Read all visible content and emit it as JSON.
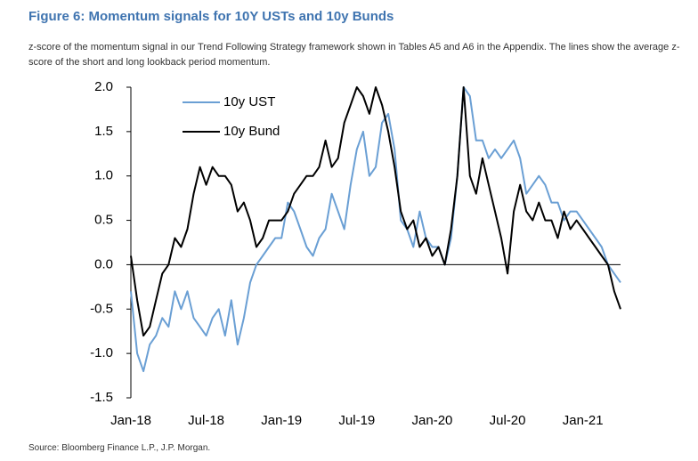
{
  "chart_data": {
    "type": "line",
    "title": "Figure 6: Momentum signals for 10Y USTs and 10y Bunds",
    "subtitle": "z-score of the momentum signal in our Trend Following Strategy framework shown in Tables A5 and A6 in the Appendix. The lines show the average z-score of the short and long lookback period momentum.",
    "source": "Source: Bloomberg Finance L.P., J.P. Morgan.",
    "categories": [
      "Jan-18",
      null,
      null,
      null,
      null,
      null,
      null,
      null,
      null,
      null,
      null,
      null,
      "Jul-18",
      null,
      null,
      null,
      null,
      null,
      null,
      null,
      null,
      null,
      null,
      null,
      "Jan-19",
      null,
      null,
      null,
      null,
      null,
      null,
      null,
      null,
      null,
      null,
      null,
      "Jul-19",
      null,
      null,
      null,
      null,
      null,
      null,
      null,
      null,
      null,
      null,
      null,
      "Jan-20",
      null,
      null,
      null,
      null,
      null,
      null,
      null,
      null,
      null,
      null,
      null,
      "Jul-20",
      null,
      null,
      null,
      null,
      null,
      null,
      null,
      null,
      null,
      null,
      null,
      "Jan-21",
      null,
      null,
      null,
      null,
      null,
      null
    ],
    "series": [
      {
        "name": "10y UST",
        "color": "#6a9fd4",
        "values": [
          -0.3,
          -1.0,
          -1.2,
          -0.9,
          -0.8,
          -0.6,
          -0.7,
          -0.3,
          -0.5,
          -0.3,
          -0.6,
          -0.7,
          -0.8,
          -0.6,
          -0.5,
          -0.8,
          -0.4,
          -0.9,
          -0.6,
          -0.2,
          0.0,
          0.1,
          0.2,
          0.3,
          0.3,
          0.7,
          0.6,
          0.4,
          0.2,
          0.1,
          0.3,
          0.4,
          0.8,
          0.6,
          0.4,
          0.9,
          1.3,
          1.5,
          1.0,
          1.1,
          1.6,
          1.7,
          1.3,
          0.5,
          0.4,
          0.2,
          0.6,
          0.3,
          0.2,
          0.2,
          0.0,
          0.3,
          1.0,
          2.0,
          1.9,
          1.4,
          1.4,
          1.2,
          1.3,
          1.2,
          1.3,
          1.4,
          1.2,
          0.8,
          0.9,
          1.0,
          0.9,
          0.7,
          0.7,
          0.5,
          0.6,
          0.6,
          0.5,
          0.4,
          0.3,
          0.2,
          0.0,
          -0.1,
          -0.2
        ]
      },
      {
        "name": "10y Bund",
        "color": "#000000",
        "values": [
          0.1,
          -0.4,
          -0.8,
          -0.7,
          -0.4,
          -0.1,
          0.0,
          0.3,
          0.2,
          0.4,
          0.8,
          1.1,
          0.9,
          1.1,
          1.0,
          1.0,
          0.9,
          0.6,
          0.7,
          0.5,
          0.2,
          0.3,
          0.5,
          0.5,
          0.5,
          0.6,
          0.8,
          0.9,
          1.0,
          1.0,
          1.1,
          1.4,
          1.1,
          1.2,
          1.6,
          1.8,
          2.0,
          1.9,
          1.7,
          2.0,
          1.8,
          1.5,
          1.1,
          0.6,
          0.4,
          0.5,
          0.2,
          0.3,
          0.1,
          0.2,
          0.0,
          0.4,
          1.0,
          2.0,
          1.0,
          0.8,
          1.2,
          0.9,
          0.6,
          0.3,
          -0.1,
          0.6,
          0.9,
          0.6,
          0.5,
          0.7,
          0.5,
          0.5,
          0.3,
          0.6,
          0.4,
          0.5,
          0.4,
          0.3,
          0.2,
          0.1,
          0.0,
          -0.3,
          -0.5
        ]
      }
    ],
    "ylim": [
      -1.5,
      2
    ],
    "yticks": [
      {
        "value": -1.5,
        "label": "-1.5"
      },
      {
        "value": -1,
        "label": "-1.0"
      },
      -0.5,
      {
        "value": 0,
        "label": "0.0"
      },
      0.5,
      {
        "value": 1,
        "label": "1.0"
      },
      1.5,
      {
        "value": 2,
        "label": "2.0"
      }
    ],
    "legend": "upper left",
    "grid": false
  }
}
